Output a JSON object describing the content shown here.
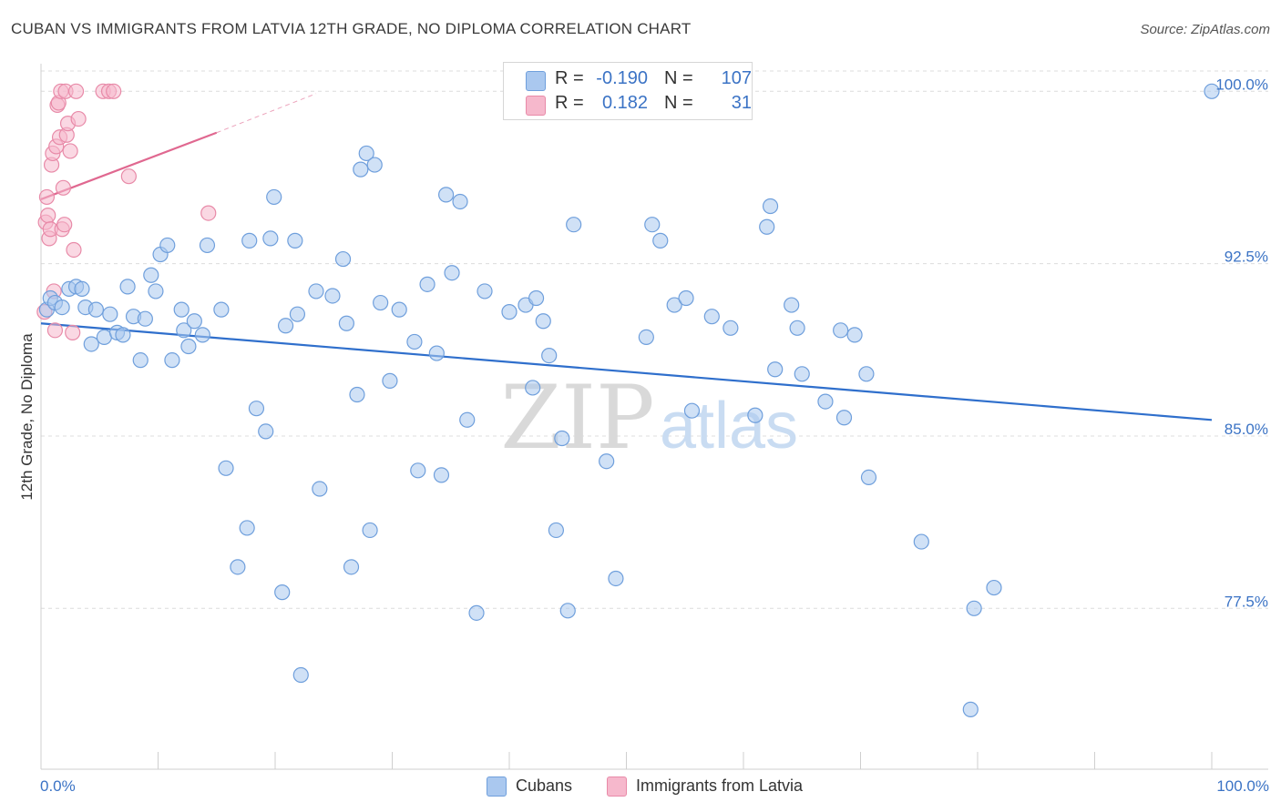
{
  "title": "CUBAN VS IMMIGRANTS FROM LATVIA 12TH GRADE, NO DIPLOMA CORRELATION CHART",
  "source": "Source: ZipAtlas.com",
  "watermark": {
    "zip": "ZIP",
    "atlas": "atlas"
  },
  "legend": {
    "r_label": "R =",
    "n_label": "N =",
    "rows": [
      {
        "r": "-0.190",
        "n": "107",
        "color": "#aac8ef"
      },
      {
        "r": "0.182",
        "n": "31",
        "color": "#f6b8cc"
      }
    ]
  },
  "colors": {
    "blue_fill": "#aac8ef",
    "blue_stroke": "#6f9fdc",
    "blue_line": "#2f6fcc",
    "pink_fill": "#f6b8cc",
    "pink_stroke": "#e88aa8",
    "pink_line": "#e06890",
    "axis_text": "#3b73c5",
    "grid": "#dcdcdc"
  },
  "chart_data": {
    "type": "scatter",
    "title": "CUBAN VS IMMIGRANTS FROM LATVIA 12TH GRADE, NO DIPLOMA CORRELATION CHART",
    "xlabel": "",
    "ylabel": "12th Grade, No Diploma",
    "xlim": [
      0,
      100
    ],
    "ylim": [
      70.5,
      101.2
    ],
    "x_tick_labels": [
      "0.0%",
      "100.0%"
    ],
    "y_ticks": [
      77.5,
      85.0,
      92.5,
      100.0
    ],
    "y_tick_labels": [
      "77.5%",
      "85.0%",
      "92.5%",
      "100.0%"
    ],
    "grid": "horizontal dashed",
    "legend_position": "top-center",
    "series": [
      {
        "name": "Cubans",
        "r": -0.19,
        "n": 107,
        "trend": {
          "x": [
            0,
            100
          ],
          "y": [
            89.9,
            85.7
          ]
        },
        "points": [
          [
            0.5,
            90.5
          ],
          [
            0.8,
            91.0
          ],
          [
            1.2,
            90.8
          ],
          [
            1.8,
            90.6
          ],
          [
            2.4,
            91.4
          ],
          [
            3.0,
            91.5
          ],
          [
            3.5,
            91.4
          ],
          [
            3.8,
            90.6
          ],
          [
            4.3,
            89.0
          ],
          [
            4.7,
            90.5
          ],
          [
            5.4,
            89.3
          ],
          [
            5.9,
            90.3
          ],
          [
            6.5,
            89.5
          ],
          [
            7.0,
            89.4
          ],
          [
            7.4,
            91.5
          ],
          [
            7.9,
            90.2
          ],
          [
            8.5,
            88.3
          ],
          [
            8.9,
            90.1
          ],
          [
            9.4,
            92.0
          ],
          [
            9.8,
            91.3
          ],
          [
            10.2,
            92.9
          ],
          [
            10.8,
            93.3
          ],
          [
            11.2,
            88.3
          ],
          [
            12.0,
            90.5
          ],
          [
            12.2,
            89.6
          ],
          [
            12.6,
            88.9
          ],
          [
            13.1,
            90.0
          ],
          [
            13.8,
            89.4
          ],
          [
            14.2,
            93.3
          ],
          [
            15.4,
            90.5
          ],
          [
            15.8,
            83.6
          ],
          [
            16.8,
            79.3
          ],
          [
            17.6,
            81.0
          ],
          [
            17.8,
            93.5
          ],
          [
            18.4,
            86.2
          ],
          [
            19.2,
            85.2
          ],
          [
            19.6,
            93.6
          ],
          [
            19.9,
            95.4
          ],
          [
            20.6,
            78.2
          ],
          [
            20.9,
            89.8
          ],
          [
            21.7,
            93.5
          ],
          [
            21.9,
            90.3
          ],
          [
            22.2,
            74.6
          ],
          [
            23.5,
            91.3
          ],
          [
            23.8,
            82.7
          ],
          [
            24.9,
            91.1
          ],
          [
            25.8,
            92.7
          ],
          [
            26.1,
            89.9
          ],
          [
            26.5,
            79.3
          ],
          [
            27.0,
            86.8
          ],
          [
            27.3,
            96.6
          ],
          [
            27.8,
            97.3
          ],
          [
            28.1,
            80.9
          ],
          [
            28.5,
            96.8
          ],
          [
            29.0,
            90.8
          ],
          [
            29.8,
            87.4
          ],
          [
            30.6,
            90.5
          ],
          [
            31.9,
            89.1
          ],
          [
            32.2,
            83.5
          ],
          [
            33.0,
            91.6
          ],
          [
            33.8,
            88.6
          ],
          [
            34.2,
            83.3
          ],
          [
            34.6,
            95.5
          ],
          [
            35.1,
            92.1
          ],
          [
            35.8,
            95.2
          ],
          [
            36.4,
            85.7
          ],
          [
            37.2,
            77.3
          ],
          [
            37.9,
            91.3
          ],
          [
            40.0,
            90.4
          ],
          [
            41.4,
            90.7
          ],
          [
            42.0,
            87.1
          ],
          [
            42.3,
            91.0
          ],
          [
            42.9,
            90.0
          ],
          [
            43.4,
            88.5
          ],
          [
            44.0,
            80.9
          ],
          [
            44.5,
            84.9
          ],
          [
            45.0,
            77.4
          ],
          [
            45.5,
            94.2
          ],
          [
            48.3,
            83.9
          ],
          [
            49.1,
            78.8
          ],
          [
            51.7,
            89.3
          ],
          [
            52.2,
            94.2
          ],
          [
            52.9,
            93.5
          ],
          [
            54.1,
            90.7
          ],
          [
            55.1,
            91.0
          ],
          [
            55.6,
            86.1
          ],
          [
            57.3,
            90.2
          ],
          [
            58.9,
            89.7
          ],
          [
            61.0,
            85.9
          ],
          [
            62.0,
            94.1
          ],
          [
            62.3,
            95.0
          ],
          [
            62.7,
            87.9
          ],
          [
            64.1,
            90.7
          ],
          [
            64.6,
            89.7
          ],
          [
            65.0,
            87.7
          ],
          [
            67.0,
            86.5
          ],
          [
            68.3,
            89.6
          ],
          [
            68.6,
            85.8
          ],
          [
            69.5,
            89.4
          ],
          [
            70.5,
            87.7
          ],
          [
            70.7,
            83.2
          ],
          [
            75.2,
            80.4
          ],
          [
            79.4,
            73.1
          ],
          [
            79.7,
            77.5
          ],
          [
            81.4,
            78.4
          ],
          [
            100.0,
            100.0
          ]
        ]
      },
      {
        "name": "Immigrants from Latvia",
        "r": 0.182,
        "n": 31,
        "trend": {
          "x": [
            0,
            15
          ],
          "y": [
            95.3,
            98.2
          ]
        },
        "trend_extension": {
          "x": [
            15,
            23.5
          ],
          "y": [
            98.2,
            99.9
          ]
        },
        "points": [
          [
            0.3,
            90.4
          ],
          [
            0.4,
            94.3
          ],
          [
            0.5,
            95.4
          ],
          [
            0.6,
            94.6
          ],
          [
            0.7,
            93.6
          ],
          [
            0.8,
            94.0
          ],
          [
            0.9,
            96.8
          ],
          [
            1.0,
            97.3
          ],
          [
            1.1,
            91.3
          ],
          [
            1.2,
            89.6
          ],
          [
            1.3,
            97.6
          ],
          [
            1.4,
            99.4
          ],
          [
            1.5,
            99.5
          ],
          [
            1.6,
            98.0
          ],
          [
            1.7,
            100.0
          ],
          [
            1.8,
            94.0
          ],
          [
            1.9,
            95.8
          ],
          [
            2.0,
            94.2
          ],
          [
            2.1,
            100.0
          ],
          [
            2.2,
            98.1
          ],
          [
            2.3,
            98.6
          ],
          [
            2.5,
            97.4
          ],
          [
            2.7,
            89.5
          ],
          [
            2.8,
            93.1
          ],
          [
            3.0,
            100.0
          ],
          [
            3.2,
            98.8
          ],
          [
            5.3,
            100.0
          ],
          [
            5.8,
            100.0
          ],
          [
            6.2,
            100.0
          ],
          [
            7.5,
            96.3
          ],
          [
            14.3,
            94.7
          ]
        ]
      }
    ]
  },
  "bottom_legend": [
    {
      "label": "Cubans",
      "color": "#aac8ef"
    },
    {
      "label": "Immigrants from Latvia",
      "color": "#f6b8cc"
    }
  ]
}
